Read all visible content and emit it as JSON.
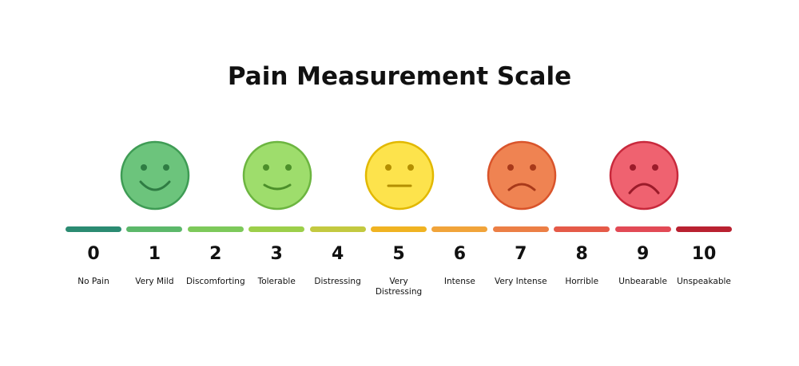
{
  "header": {
    "title": "Pain Measurement Scale"
  },
  "levels": [
    {
      "number": 0,
      "label": "No Pain",
      "color": "#2b8b72"
    },
    {
      "number": 1,
      "label": "Very Mild",
      "color": "#5cb86a"
    },
    {
      "number": 2,
      "label": "Discomforting",
      "color": "#7dc95a"
    },
    {
      "number": 3,
      "label": "Tolerable",
      "color": "#9ccf4a"
    },
    {
      "number": 4,
      "label": "Distressing",
      "color": "#c3c940"
    },
    {
      "number": 5,
      "label": "Very Distressing",
      "color": "#f0b322"
    },
    {
      "number": 6,
      "label": "Intense",
      "color": "#f1a43a"
    },
    {
      "number": 7,
      "label": "Very Intense",
      "color": "#ec7f45"
    },
    {
      "number": 8,
      "label": "Horrible",
      "color": "#e55a48"
    },
    {
      "number": 9,
      "label": "Unbearable",
      "color": "#e24a55"
    },
    {
      "number": 10,
      "label": "Unspeakable",
      "color": "#b92130"
    }
  ]
}
